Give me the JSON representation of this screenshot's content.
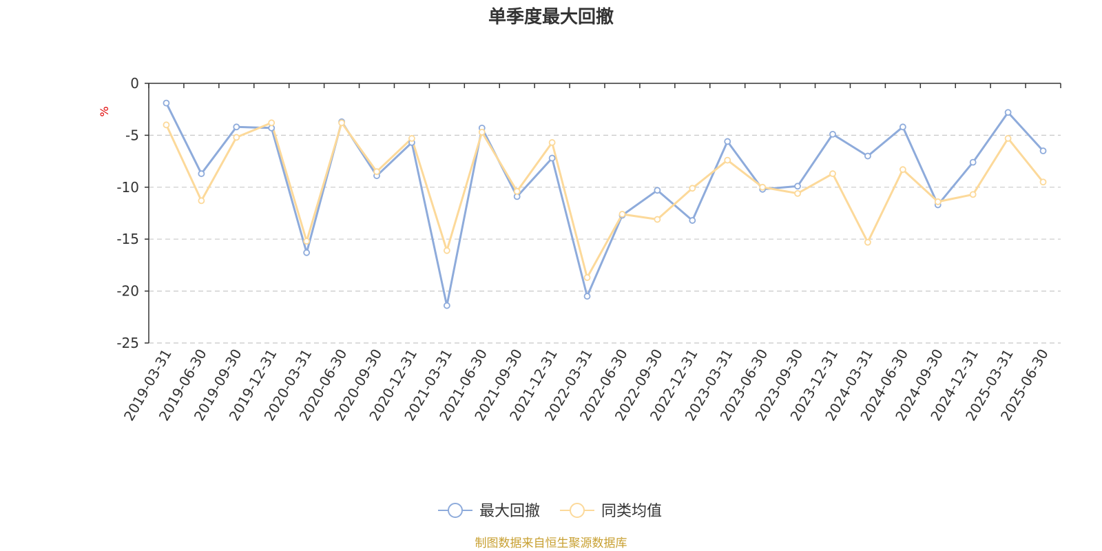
{
  "chart_data": {
    "type": "line",
    "title": "单季度最大回撤",
    "ylabel": "%",
    "xlabel": "",
    "ylim": [
      -25,
      0
    ],
    "yticks": [
      0,
      -5,
      -10,
      -15,
      -20,
      -25
    ],
    "grid": true,
    "legend_position": "bottom-center",
    "categories": [
      "2019-03-31",
      "2019-06-30",
      "2019-09-30",
      "2019-12-31",
      "2020-03-31",
      "2020-06-30",
      "2020-09-30",
      "2020-12-31",
      "2021-03-31",
      "2021-06-30",
      "2021-09-30",
      "2021-12-31",
      "2022-03-31",
      "2022-06-30",
      "2022-09-30",
      "2022-12-31",
      "2023-03-31",
      "2023-06-30",
      "2023-09-30",
      "2023-12-31",
      "2024-03-31",
      "2024-06-30",
      "2024-09-30",
      "2024-12-31",
      "2025-03-31",
      "2025-06-30"
    ],
    "series": [
      {
        "name": "最大回撤",
        "color": "#8eabdb",
        "values": [
          -1.9,
          -8.7,
          -4.2,
          -4.3,
          -16.3,
          -3.7,
          -8.9,
          -5.7,
          -21.4,
          -4.3,
          -10.9,
          -7.2,
          -20.5,
          -12.7,
          -10.3,
          -13.2,
          -5.6,
          -10.2,
          -9.9,
          -4.9,
          -7.0,
          -4.2,
          -11.7,
          -7.6,
          -2.8,
          -6.5
        ]
      },
      {
        "name": "同类均值",
        "color": "#fcd99a",
        "values": [
          -4.0,
          -11.3,
          -5.2,
          -3.8,
          -15.2,
          -3.8,
          -8.5,
          -5.3,
          -16.1,
          -4.7,
          -10.4,
          -5.7,
          -18.7,
          -12.6,
          -13.1,
          -10.1,
          -7.4,
          -10.0,
          -10.6,
          -8.7,
          -15.3,
          -8.3,
          -11.4,
          -10.7,
          -5.3,
          -9.5
        ]
      }
    ],
    "source": "制图数据来自恒生聚源数据库"
  }
}
